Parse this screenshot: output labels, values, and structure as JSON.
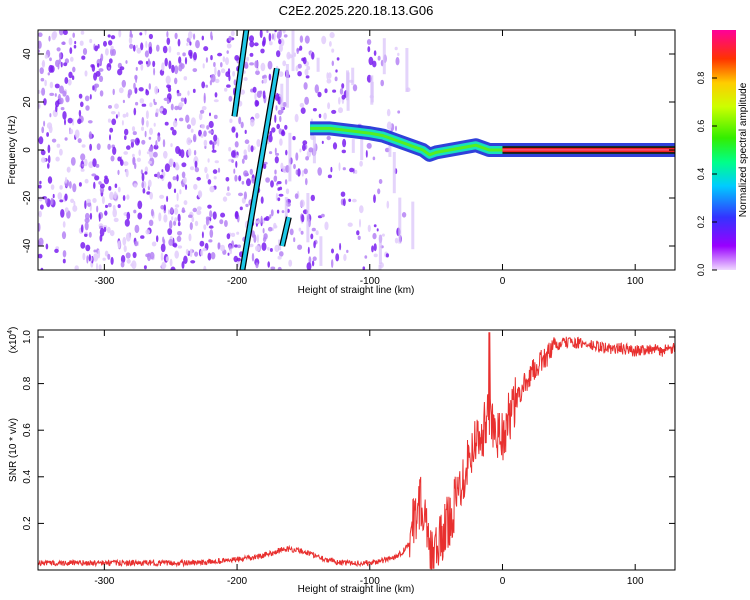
{
  "title": "C2E2.2025.220.18.13.G06",
  "chart_data": [
    {
      "type": "heatmap",
      "xlabel": "Height of straight line (km)",
      "ylabel": "Frequency (Hz)",
      "xlim": [
        -350,
        130
      ],
      "ylim": [
        -50,
        50
      ],
      "xticks": [
        -300,
        -200,
        -100,
        0,
        100
      ],
      "yticks": [
        -40,
        -20,
        0,
        20,
        40
      ],
      "colorbar": {
        "label": "Normalized spectral amplitude",
        "range": [
          0,
          1
        ],
        "ticks": [
          "0.0",
          "0.2",
          "0.4",
          "0.6",
          "0.8"
        ]
      },
      "features": {
        "noise_region_x": [
          -350,
          -60
        ],
        "line_segments": [
          {
            "x": [
              -202,
              -193
            ],
            "y": [
              14,
              50
            ]
          },
          {
            "x": [
              -196,
              -170
            ],
            "y": [
              -50,
              34
            ]
          },
          {
            "x": [
              -166,
              -161
            ],
            "y": [
              -40,
              -28
            ]
          }
        ],
        "carrier_track": {
          "x": [
            -145,
            -130,
            -115,
            -100,
            -90,
            -80,
            -70,
            -60,
            -55,
            -50,
            -40,
            -30,
            -20,
            -10,
            0,
            130
          ],
          "y": [
            9,
            9,
            8,
            7,
            6,
            4,
            2,
            0,
            -2,
            -1,
            0,
            1,
            2,
            0,
            0,
            0
          ]
        }
      }
    },
    {
      "type": "line",
      "xlabel": "Height of straight line (km)",
      "ylabel": "SNR (10 * v/v)",
      "yscale_label": "(x10",
      "yscale_exp": "4",
      "yscale_close": ")",
      "xlim": [
        -350,
        130
      ],
      "ylim": [
        0,
        1.03
      ],
      "xticks": [
        -300,
        -200,
        -100,
        0,
        100
      ],
      "yticks": [
        "0.2",
        "0.4",
        "0.6",
        "0.8",
        "1.0"
      ],
      "color": "#e8302f",
      "series": [
        {
          "x": [
            -350,
            -320,
            -290,
            -260,
            -230,
            -210,
            -190,
            -175,
            -165,
            -160,
            -150,
            -140,
            -130,
            -120,
            -110,
            -100,
            -90,
            -80,
            -75,
            -70,
            -65,
            -62,
            -58,
            -55,
            -52,
            -48,
            -45,
            -40,
            -35,
            -30,
            -25,
            -20,
            -15,
            -10,
            -5,
            0,
            5,
            10,
            15,
            20,
            25,
            30,
            35,
            40,
            50,
            60,
            70,
            80,
            90,
            100,
            110,
            120,
            130
          ],
          "y": [
            0.03,
            0.03,
            0.03,
            0.03,
            0.03,
            0.04,
            0.05,
            0.07,
            0.09,
            0.09,
            0.08,
            0.06,
            0.04,
            0.03,
            0.03,
            0.03,
            0.04,
            0.06,
            0.08,
            0.12,
            0.25,
            0.3,
            0.2,
            0.05,
            0.06,
            0.1,
            0.15,
            0.22,
            0.3,
            0.4,
            0.5,
            0.55,
            0.6,
            0.65,
            0.6,
            0.58,
            0.65,
            0.72,
            0.78,
            0.83,
            0.87,
            0.9,
            0.93,
            0.96,
            0.98,
            0.97,
            0.96,
            0.95,
            0.95,
            0.94,
            0.95,
            0.94,
            0.95
          ]
        }
      ]
    }
  ]
}
